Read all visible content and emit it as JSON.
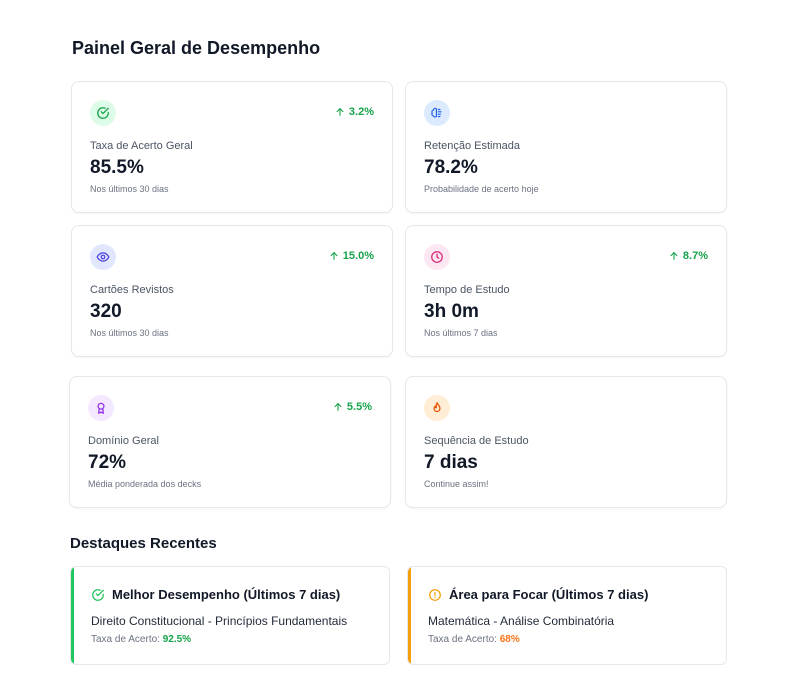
{
  "title": "Painel Geral de Desempenho",
  "cards": [
    {
      "label": "Taxa de Acerto Geral",
      "value": "85.5%",
      "sub": "Nos últimos 30 dias",
      "trend": "3.2%",
      "icon": "check-circle-icon"
    },
    {
      "label": "Retenção Estimada",
      "value": "78.2%",
      "sub": "Probabilidade de acerto hoje",
      "trend": "",
      "icon": "brain-icon"
    },
    {
      "label": "Cartões Revistos",
      "value": "320",
      "sub": "Nos últimos 30 dias",
      "trend": "15.0%",
      "icon": "eye-icon"
    },
    {
      "label": "Tempo de Estudo",
      "value": "3h 0m",
      "sub": "Nos últimos 7 dias",
      "trend": "8.7%",
      "icon": "clock-icon"
    },
    {
      "label": "Domínio Geral",
      "value": "72%",
      "sub": "Média ponderada dos decks",
      "trend": "5.5%",
      "icon": "award-icon"
    },
    {
      "label": "Sequência de Estudo",
      "value": "7 dias",
      "sub": "Continue assim!",
      "trend": "",
      "icon": "flame-icon"
    }
  ],
  "highlights_title": "Destaques Recentes",
  "highlights": [
    {
      "heading": "Melhor Desempenho (Últimos 7 dias)",
      "subject": "Direito Constitucional - Princípios Fundamentais",
      "rate_label": "Taxa de Acerto:",
      "rate_value": "92.5%",
      "color": "#22c55e"
    },
    {
      "heading": "Área para Focar (Últimos 7 dias)",
      "subject": "Matemática - Análise Combinatória",
      "rate_label": "Taxa de Acerto:",
      "rate_value": "68%",
      "color": "#f59e0b"
    }
  ],
  "colors": {
    "trend_up": "#16a34a",
    "best": "#22c55e",
    "focus": "#f59e0b"
  }
}
